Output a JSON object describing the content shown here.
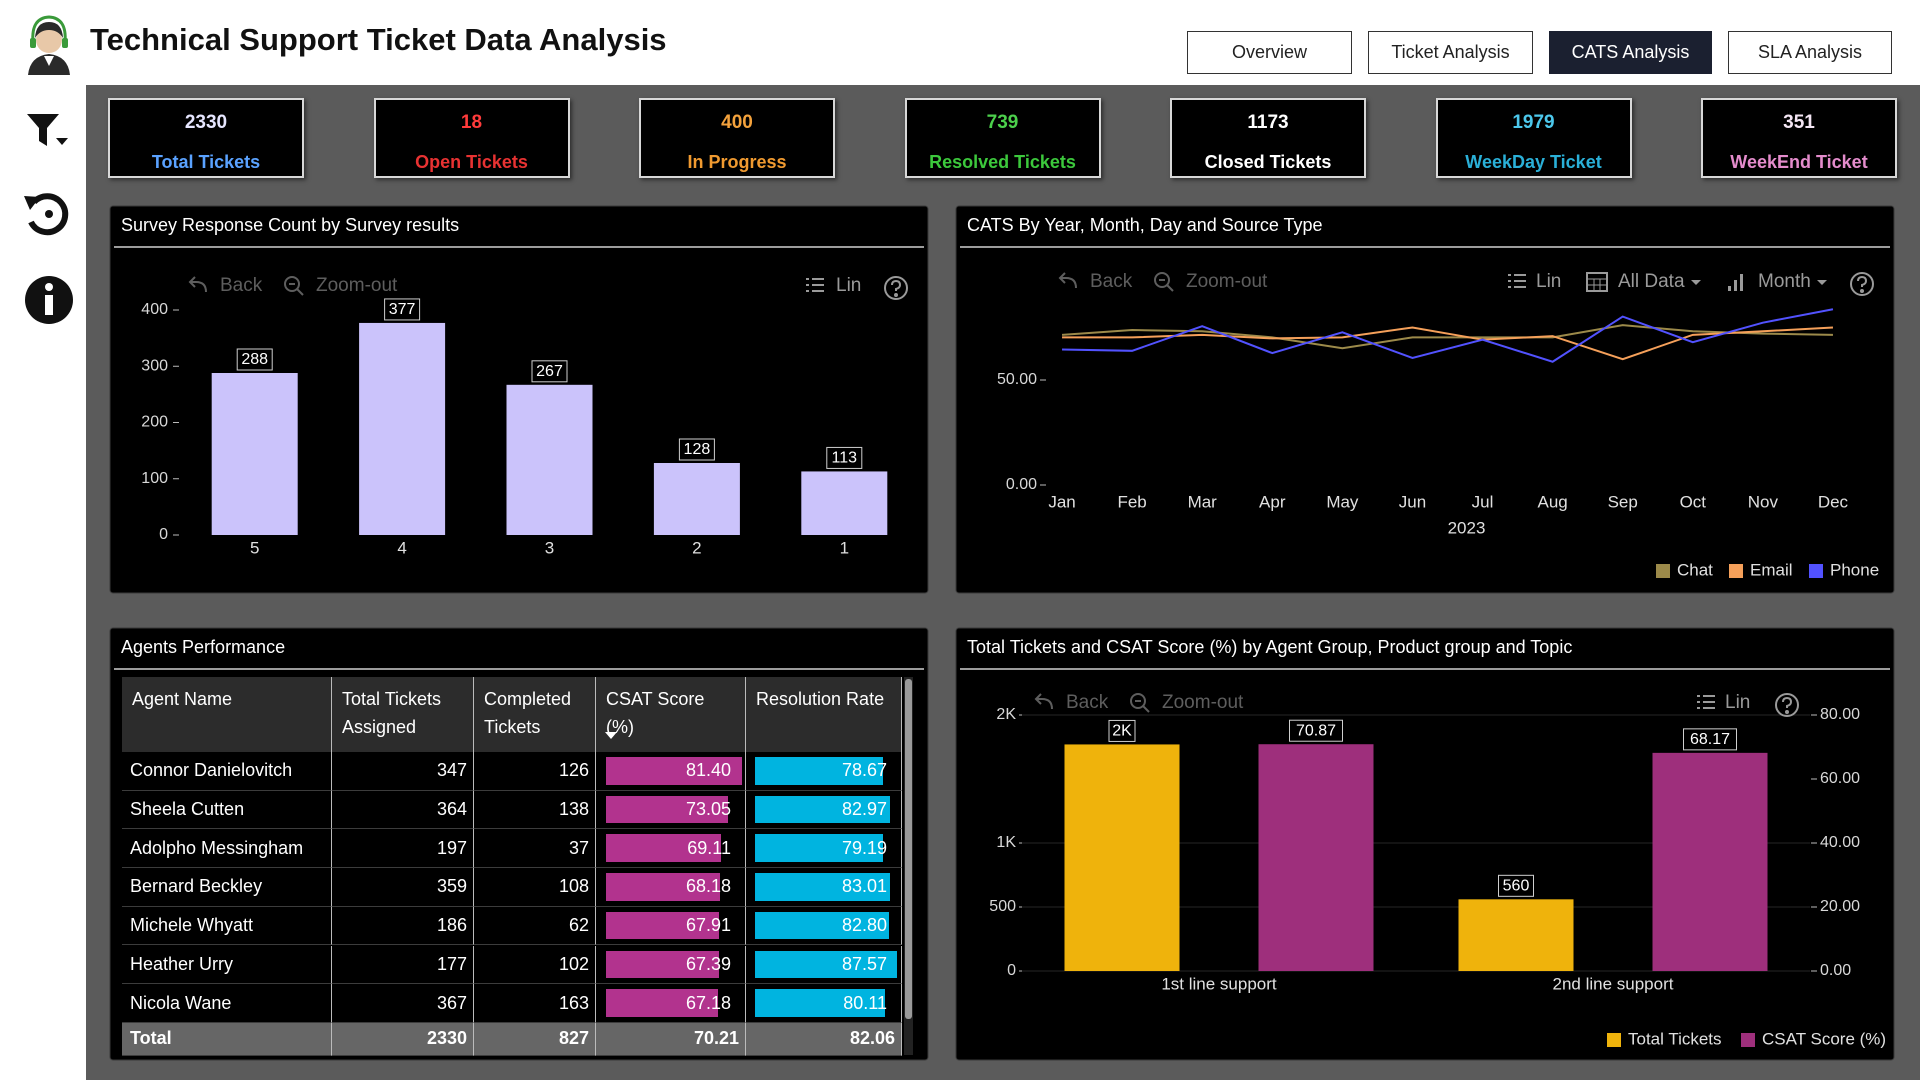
{
  "header": {
    "title": "Technical Support Ticket Data Analysis"
  },
  "nav": [
    "Overview",
    "Ticket Analysis",
    "CATS Analysis",
    "SLA Analysis"
  ],
  "active_nav": 2,
  "kpis": [
    {
      "value": 2330,
      "label": "Total Tickets",
      "value_color": "#e6e6ff",
      "label_color": "#5aa2ff"
    },
    {
      "value": 18,
      "label": "Open Tickets",
      "value_color": "#ff3b3b",
      "label_color": "#e83232"
    },
    {
      "value": 400,
      "label": "In Progress",
      "value_color": "#f4a23c",
      "label_color": "#f09a30"
    },
    {
      "value": 739,
      "label": "Resolved Tickets",
      "value_color": "#4cd04c",
      "label_color": "#3cc83c"
    },
    {
      "value": 1173,
      "label": "Closed Tickets",
      "value_color": "#ffffff",
      "label_color": "#ffffff"
    },
    {
      "value": 1979,
      "label": "WeekDay Ticket",
      "value_color": "#4cc8ec",
      "label_color": "#2ab0d8"
    },
    {
      "value": 351,
      "label": "WeekEnd Ticket",
      "value_color": "#f4e6f4",
      "label_color": "#e48ccc"
    }
  ],
  "chart_data": [
    {
      "type": "bar",
      "title": "Survey Response Count by Survey results",
      "toolbar": [
        "Back",
        "Zoom-out",
        "Lin"
      ],
      "categories": [
        "5",
        "4",
        "3",
        "2",
        "1"
      ],
      "values": [
        288,
        377,
        267,
        128,
        113
      ],
      "color": "#cbc3fb",
      "ylim": [
        0,
        400
      ],
      "yticks": [
        0,
        100,
        200,
        300,
        400
      ],
      "grid": false
    },
    {
      "type": "line",
      "title": "CATS By Year, Month, Day and Source Type",
      "toolbar": [
        "Back",
        "Zoom-out",
        "Lin",
        "All Data",
        "Month"
      ],
      "categories": [
        "Jan",
        "Feb",
        "Mar",
        "Apr",
        "May",
        "Jun",
        "Jul",
        "Aug",
        "Sep",
        "Oct",
        "Nov",
        "Dec"
      ],
      "xlabel": "2023",
      "series": [
        {
          "name": "Chat",
          "color": "#9c8a4a",
          "values": [
            71.5,
            73.8,
            73.2,
            70.3,
            65.1,
            70.3,
            70.3,
            70.3,
            76.1,
            73.2,
            72.1,
            71.5
          ]
        },
        {
          "name": "Email",
          "color": "#f5a05a",
          "values": [
            70.3,
            70.3,
            71.5,
            69.8,
            70.3,
            75.0,
            69.2,
            70.9,
            59.9,
            71.5,
            73.2,
            75.0
          ]
        },
        {
          "name": "Phone",
          "color": "#5252ff",
          "values": [
            64.5,
            63.9,
            75.6,
            62.8,
            72.7,
            60.5,
            69.2,
            58.7,
            80.2,
            68.0,
            77.3,
            83.7
          ]
        }
      ],
      "ylim": [
        0,
        90
      ],
      "yticks": [
        {
          "value": 0,
          "label": "0.00"
        },
        {
          "value": 50,
          "label": "50.00"
        }
      ],
      "grid": false,
      "legend": "bottom-right"
    },
    {
      "type": "bar",
      "title": "Total Tickets and CSAT Score (%) by Agent Group, Product group and Topic",
      "toolbar": [
        "Back",
        "Zoom-out",
        "Lin"
      ],
      "categories": [
        "1st line support",
        "2nd line support"
      ],
      "series": [
        {
          "name": "Total Tickets",
          "color": "#efb30c",
          "values": [
            1770,
            560
          ],
          "value_labels": [
            "2K",
            "560"
          ]
        },
        {
          "name": "CSAT Score (%)",
          "color": "#9e2f7c",
          "values": [
            70.87,
            68.17
          ],
          "axis": "y2"
        }
      ],
      "ylim": [
        0,
        2000
      ],
      "yticks": [
        0,
        500,
        {
          "value": 1000,
          "label": "1K"
        },
        {
          "value": 2000,
          "label": "2K"
        }
      ],
      "y2lim": [
        0,
        80
      ],
      "y2ticks": [
        {
          "value": 0,
          "label": "0.00"
        },
        {
          "value": 20,
          "label": "20.00"
        },
        {
          "value": 40,
          "label": "40.00"
        },
        {
          "value": 60,
          "label": "60.00"
        },
        {
          "value": 80,
          "label": "80.00"
        }
      ],
      "grid": true,
      "legend": "bottom-right"
    }
  ],
  "table": {
    "title": "Agents Performance",
    "columns": [
      "Agent Name",
      "Total Tickets Assigned",
      "Completed Tickets",
      "CSAT Score (%)",
      "Resolution Rate"
    ],
    "rows": [
      [
        "Connor Danielovitch",
        "347",
        "126",
        "81.40",
        "78.67"
      ],
      [
        "Sheela Cutten",
        "364",
        "138",
        "73.05",
        "82.97"
      ],
      [
        "Adolpho Messingham",
        "197",
        "37",
        "69.11",
        "79.19"
      ],
      [
        "Bernard Beckley",
        "359",
        "108",
        "68.18",
        "83.01"
      ],
      [
        "Michele Whyatt",
        "186",
        "62",
        "67.91",
        "82.80"
      ],
      [
        "Heather Urry",
        "177",
        "102",
        "67.39",
        "87.57"
      ],
      [
        "Nicola Wane",
        "367",
        "163",
        "67.18",
        "80.11"
      ]
    ],
    "total": [
      "Total",
      "2330",
      "827",
      "70.21",
      "82.06"
    ],
    "bar_colors": [
      "#b2338e",
      "#00b4e0"
    ]
  }
}
